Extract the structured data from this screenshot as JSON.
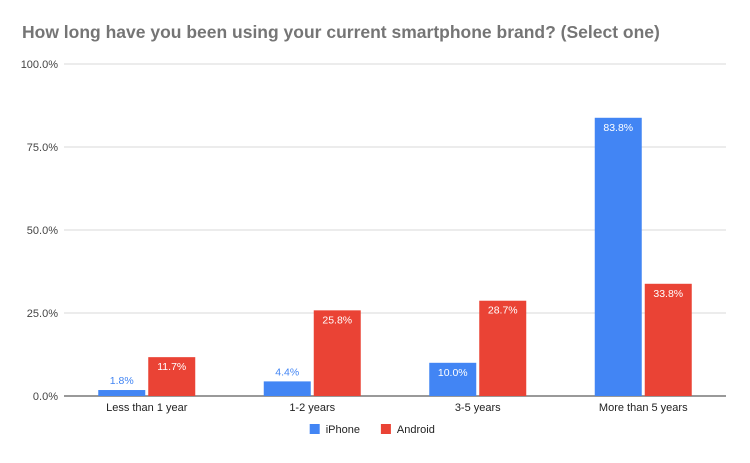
{
  "chart_data": {
    "type": "bar",
    "title": "How long have you been using your current smartphone brand? (Select one)",
    "categories": [
      "Less than 1 year",
      "1-2 years",
      "3-5 years",
      "More than 5 years"
    ],
    "series": [
      {
        "name": "iPhone",
        "values": [
          1.8,
          4.4,
          10.0,
          83.8
        ],
        "labels": [
          "1.8%",
          "4.4%",
          "10.0%",
          "83.8%"
        ],
        "color": "#4285f4"
      },
      {
        "name": "Android",
        "values": [
          11.7,
          25.8,
          28.7,
          33.8
        ],
        "labels": [
          "11.7%",
          "25.8%",
          "28.7%",
          "33.8%"
        ],
        "color": "#ea4335"
      }
    ],
    "yticks": [
      "0.0%",
      "25.0%",
      "50.0%",
      "75.0%",
      "100.0%"
    ],
    "ylim": [
      0,
      100
    ],
    "grid": true,
    "legend": "bottom"
  }
}
